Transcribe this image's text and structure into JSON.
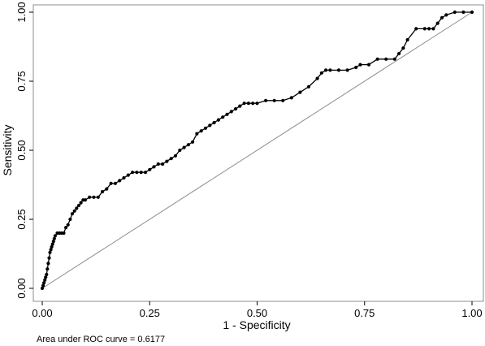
{
  "chart_data": {
    "type": "line",
    "xlabel": "1 - Specificity",
    "ylabel": "Sensitivity",
    "xlim": [
      0,
      1
    ],
    "ylim": [
      0,
      1
    ],
    "xticks": [
      "0.00",
      "0.25",
      "0.50",
      "0.75",
      "1.00"
    ],
    "yticks": [
      "0.00",
      "0.25",
      "0.50",
      "0.75",
      "1.00"
    ],
    "grid": false,
    "legend": "none",
    "annotation": "Area under ROC curve = 0.6177",
    "colors": {
      "curve": "#000000",
      "reference": "#8c8c8c",
      "frame": "#8c8c8c"
    },
    "reference_line": {
      "x": [
        0,
        1
      ],
      "y": [
        0,
        1
      ]
    },
    "series": [
      {
        "x": [
          0,
          0.002,
          0.004,
          0.006,
          0.008,
          0.01,
          0.012,
          0.014,
          0.016,
          0.018,
          0.02,
          0.022,
          0.024,
          0.026,
          0.028,
          0.03,
          0.035,
          0.04,
          0.045,
          0.05,
          0.055,
          0.06,
          0.065,
          0.07,
          0.075,
          0.08,
          0.085,
          0.09,
          0.095,
          0.1,
          0.11,
          0.12,
          0.13,
          0.14,
          0.15,
          0.16,
          0.17,
          0.18,
          0.19,
          0.2,
          0.21,
          0.22,
          0.23,
          0.24,
          0.25,
          0.26,
          0.27,
          0.28,
          0.29,
          0.3,
          0.31,
          0.32,
          0.33,
          0.34,
          0.35,
          0.36,
          0.37,
          0.38,
          0.39,
          0.4,
          0.41,
          0.42,
          0.43,
          0.44,
          0.45,
          0.46,
          0.47,
          0.48,
          0.49,
          0.5,
          0.52,
          0.54,
          0.56,
          0.58,
          0.6,
          0.62,
          0.64,
          0.65,
          0.66,
          0.67,
          0.69,
          0.71,
          0.73,
          0.74,
          0.76,
          0.78,
          0.8,
          0.82,
          0.83,
          0.84,
          0.85,
          0.87,
          0.89,
          0.9,
          0.91,
          0.92,
          0.93,
          0.94,
          0.96,
          0.98,
          1.0
        ],
        "y": [
          0,
          0.01,
          0.02,
          0.03,
          0.04,
          0.05,
          0.07,
          0.09,
          0.11,
          0.13,
          0.14,
          0.15,
          0.16,
          0.17,
          0.18,
          0.19,
          0.2,
          0.2,
          0.2,
          0.2,
          0.22,
          0.23,
          0.25,
          0.27,
          0.28,
          0.29,
          0.3,
          0.31,
          0.32,
          0.32,
          0.33,
          0.33,
          0.33,
          0.35,
          0.36,
          0.38,
          0.38,
          0.39,
          0.4,
          0.41,
          0.42,
          0.42,
          0.42,
          0.42,
          0.43,
          0.44,
          0.45,
          0.45,
          0.46,
          0.47,
          0.48,
          0.5,
          0.51,
          0.52,
          0.53,
          0.56,
          0.57,
          0.58,
          0.59,
          0.6,
          0.61,
          0.62,
          0.63,
          0.64,
          0.65,
          0.66,
          0.67,
          0.67,
          0.67,
          0.67,
          0.68,
          0.68,
          0.68,
          0.69,
          0.71,
          0.73,
          0.76,
          0.78,
          0.79,
          0.79,
          0.79,
          0.79,
          0.8,
          0.81,
          0.81,
          0.83,
          0.83,
          0.83,
          0.85,
          0.87,
          0.9,
          0.94,
          0.94,
          0.94,
          0.94,
          0.96,
          0.98,
          0.99,
          1.0,
          1.0,
          1.0
        ]
      }
    ]
  }
}
